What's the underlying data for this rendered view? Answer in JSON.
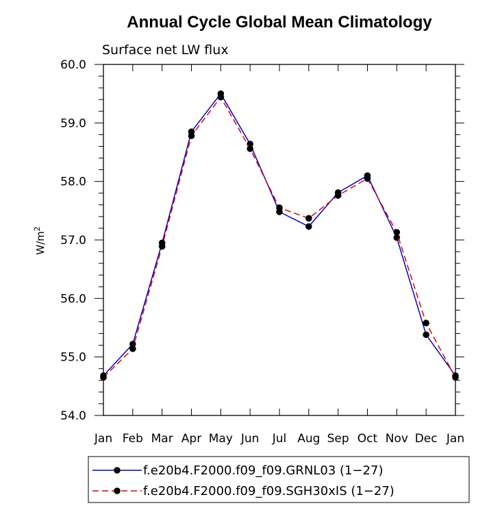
{
  "chart_data": {
    "type": "line",
    "title": "Annual Cycle Global Mean Climatology",
    "subtitle": "Surface net LW flux",
    "ylabel_base": "W/m",
    "ylabel_sup": "2",
    "categories": [
      "Jan",
      "Feb",
      "Mar",
      "Apr",
      "May",
      "Jun",
      "Jul",
      "Aug",
      "Sep",
      "Oct",
      "Nov",
      "Dec",
      "Jan"
    ],
    "ylim": [
      54.0,
      60.0
    ],
    "yticks": [
      "54.0",
      "55.0",
      "56.0",
      "57.0",
      "58.0",
      "59.0",
      "60.0"
    ],
    "series": [
      {
        "name": "f.e20b4.F2000.f09_f09.GRNL03 (1−27)",
        "color": "#0000cc",
        "dash": "solid",
        "values": [
          54.68,
          55.22,
          56.95,
          58.85,
          59.5,
          58.64,
          57.48,
          57.23,
          57.81,
          58.1,
          57.04,
          55.38,
          54.68
        ]
      },
      {
        "name": "f.e20b4.F2000.f09_f09.SGH30xIS (1−27)",
        "color": "#dd0000",
        "dash": "dashed",
        "values": [
          54.65,
          55.14,
          56.89,
          58.78,
          59.44,
          58.56,
          57.55,
          57.37,
          57.76,
          58.05,
          57.13,
          55.58,
          54.65
        ]
      }
    ]
  }
}
